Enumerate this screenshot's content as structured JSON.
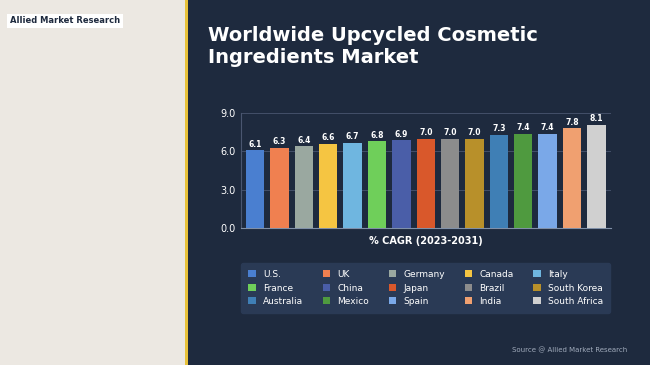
{
  "chart_data": {
    "type": "bar",
    "title": "Worldwide Upcycled Cosmetic Ingredients Market",
    "x_label": "% CAGR (2023-2031)",
    "source": "Source @ Allied Market Research",
    "logo": "Allied Market Research",
    "categories": [
      "U.S.",
      "UK",
      "Germany",
      "Canada",
      "Italy",
      "France",
      "China",
      "Japan",
      "Brazil",
      "South Korea",
      "Australia",
      "Mexico",
      "Spain",
      "India",
      "South Africa"
    ],
    "values": [
      6.1,
      6.3,
      6.4,
      6.6,
      6.7,
      6.8,
      6.9,
      7.0,
      7.0,
      7.0,
      7.3,
      7.4,
      7.4,
      7.8,
      8.1
    ],
    "value_labels": [
      "6.1",
      "6.3",
      "6.4",
      "6.6",
      "6.7",
      "6.8",
      "6.9",
      "7.0",
      "7.0",
      "7.0",
      "7.3",
      "7.4",
      "7.4",
      "7.8",
      "8.1"
    ],
    "colors": [
      "#4a7fd0",
      "#f08050",
      "#9aa8a0",
      "#f5c542",
      "#6fb6e0",
      "#6fcf5a",
      "#4a5ea8",
      "#d9582b",
      "#8c8c8c",
      "#b8902a",
      "#3f7fb5",
      "#4f9a3f",
      "#7aa8e8",
      "#f0a070",
      "#d0d0d0"
    ],
    "ylim": [
      0,
      9
    ],
    "yticks": [
      {
        "value": 0,
        "label": "0.0"
      },
      {
        "value": 3,
        "label": "3.0"
      },
      {
        "value": 6,
        "label": "6.0"
      },
      {
        "value": 9,
        "label": "9.0"
      }
    ],
    "grid": true,
    "data_labels": true,
    "tick_labels": "y",
    "legend": "lower center"
  }
}
